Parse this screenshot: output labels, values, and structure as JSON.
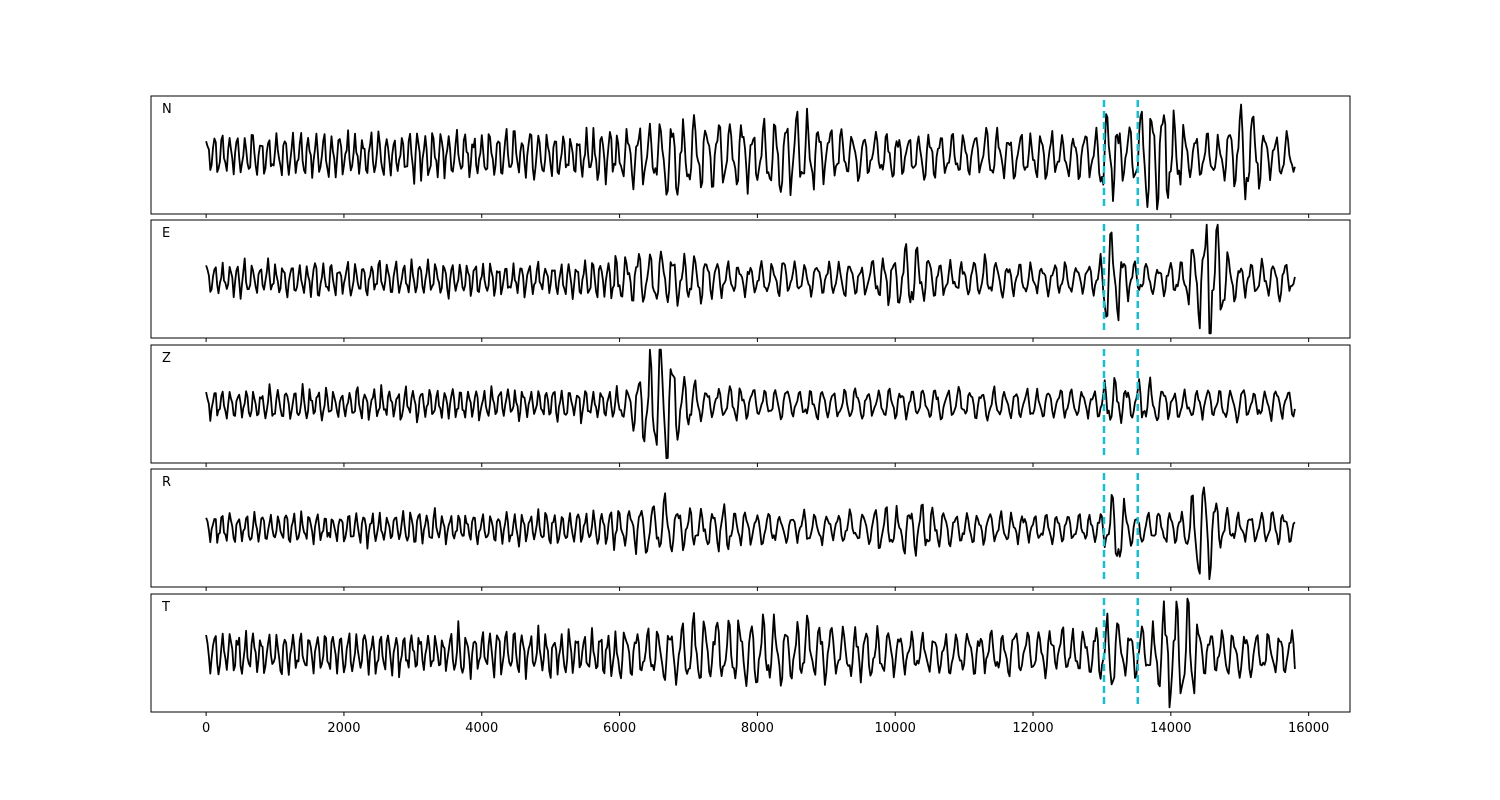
{
  "chart_data": {
    "type": "line",
    "layout": "stacked-panels",
    "x_ticks": [
      0,
      2000,
      4000,
      6000,
      8000,
      10000,
      12000,
      14000,
      16000
    ],
    "xlim": [
      -800,
      16600
    ],
    "samples": 15800,
    "grid": false,
    "markers": {
      "x": [
        13030,
        13520
      ],
      "color": "#17becf",
      "style": "dashed"
    },
    "trace_color": "#000000",
    "panels": [
      {
        "label": "N",
        "amp": 0.42,
        "events": [
          {
            "x": 7000,
            "w": 900,
            "g": 1.6
          },
          {
            "x": 8500,
            "w": 600,
            "g": 1.8
          },
          {
            "x": 13100,
            "w": 150,
            "g": 2.4
          },
          {
            "x": 13850,
            "w": 300,
            "g": 2.7
          },
          {
            "x": 15100,
            "w": 200,
            "g": 2.2
          }
        ]
      },
      {
        "label": "E",
        "amp": 0.3,
        "events": [
          {
            "x": 6600,
            "w": 700,
            "g": 1.8
          },
          {
            "x": 10200,
            "w": 400,
            "g": 1.9
          },
          {
            "x": 13160,
            "w": 130,
            "g": 3.4
          },
          {
            "x": 14550,
            "w": 250,
            "g": 3.8
          }
        ]
      },
      {
        "label": "Z",
        "amp": 0.28,
        "events": [
          {
            "x": 6600,
            "w": 320,
            "g": 4.2
          },
          {
            "x": 13150,
            "w": 200,
            "g": 1.6
          },
          {
            "x": 13700,
            "w": 200,
            "g": 1.5
          }
        ]
      },
      {
        "label": "R",
        "amp": 0.28,
        "events": [
          {
            "x": 6700,
            "w": 800,
            "g": 1.7
          },
          {
            "x": 10200,
            "w": 400,
            "g": 1.7
          },
          {
            "x": 13200,
            "w": 130,
            "g": 3.3
          },
          {
            "x": 14480,
            "w": 200,
            "g": 3.6
          }
        ]
      },
      {
        "label": "T",
        "amp": 0.4,
        "events": [
          {
            "x": 7800,
            "w": 1300,
            "g": 1.7
          },
          {
            "x": 13150,
            "w": 200,
            "g": 1.9
          },
          {
            "x": 14100,
            "w": 300,
            "g": 2.7
          }
        ]
      }
    ]
  }
}
